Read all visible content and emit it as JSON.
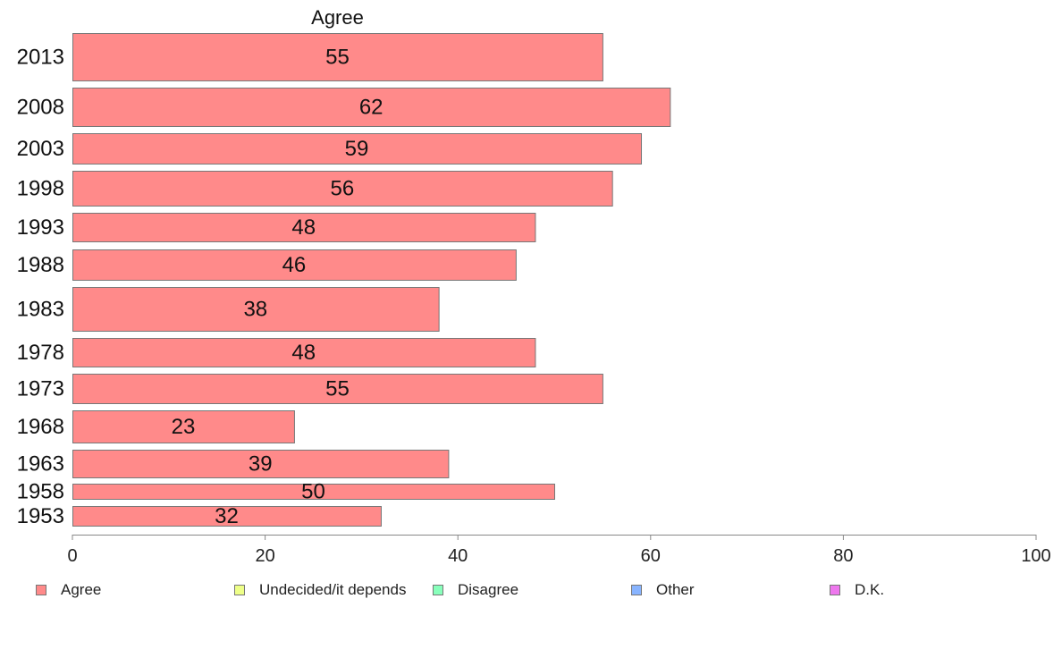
{
  "chart_data": {
    "type": "bar",
    "orientation": "horizontal",
    "title": "Agree",
    "categories": [
      "2013",
      "2008",
      "2003",
      "1998",
      "1993",
      "1988",
      "1983",
      "1978",
      "1973",
      "1968",
      "1963",
      "1958",
      "1953"
    ],
    "series": [
      {
        "name": "Agree",
        "values": [
          55,
          62,
          59,
          56,
          48,
          46,
          38,
          48,
          55,
          23,
          39,
          50,
          32
        ]
      }
    ],
    "xlim": [
      0,
      100
    ],
    "xticks": [
      "0",
      "20",
      "40",
      "60",
      "80",
      "100"
    ],
    "grid": false,
    "legend_position": "bottom",
    "legend": [
      "Agree",
      "Undecided/it depends",
      "Disagree",
      "Other",
      "D.K."
    ]
  },
  "colors": {
    "Agree": "#ff8a8a",
    "Undecided/it depends": "#eeff88",
    "Disagree": "#88ffbb",
    "Other": "#88b4ff",
    "D.K.": "#ee77ee",
    "bar_stroke": "#777777",
    "axis": "#888888"
  }
}
